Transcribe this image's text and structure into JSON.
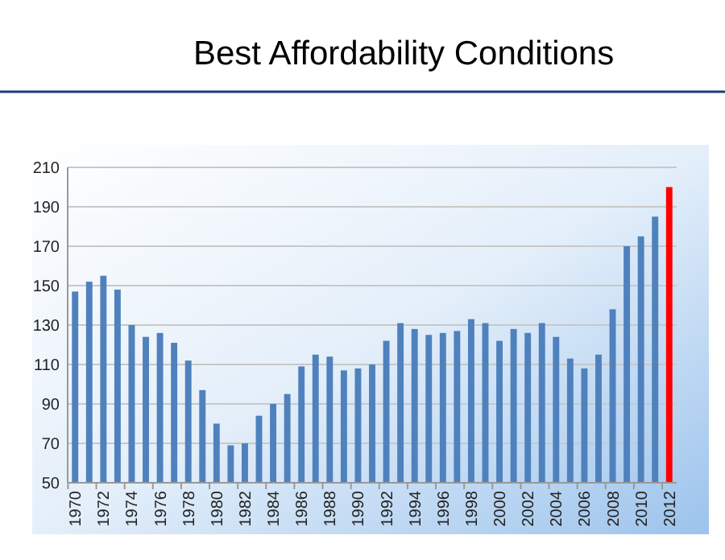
{
  "chart_data": {
    "type": "bar",
    "title": "Best Affordability Conditions",
    "categories": [
      "1970",
      null,
      "1972",
      null,
      "1974",
      null,
      "1976",
      null,
      "1978",
      null,
      "1980",
      null,
      "1982",
      null,
      "1984",
      null,
      "1986",
      null,
      "1988",
      null,
      "1990",
      null,
      "1992",
      null,
      "1994",
      null,
      "1996",
      null,
      "1998",
      null,
      "2000",
      null,
      "2002",
      null,
      "2004",
      null,
      "2006",
      null,
      "2008",
      null,
      "2010",
      null,
      "2012"
    ],
    "values": [
      147,
      152,
      155,
      148,
      130,
      124,
      126,
      121,
      112,
      97,
      80,
      69,
      70,
      84,
      90,
      95,
      109,
      115,
      114,
      107,
      108,
      110,
      122,
      131,
      128,
      125,
      126,
      127,
      133,
      131,
      122,
      128,
      126,
      131,
      124,
      113,
      108,
      115,
      138,
      170,
      175,
      185,
      200
    ],
    "colors": [
      "#4f81bd",
      "#4f81bd",
      "#4f81bd",
      "#4f81bd",
      "#4f81bd",
      "#4f81bd",
      "#4f81bd",
      "#4f81bd",
      "#4f81bd",
      "#4f81bd",
      "#4f81bd",
      "#4f81bd",
      "#4f81bd",
      "#4f81bd",
      "#4f81bd",
      "#4f81bd",
      "#4f81bd",
      "#4f81bd",
      "#4f81bd",
      "#4f81bd",
      "#4f81bd",
      "#4f81bd",
      "#4f81bd",
      "#4f81bd",
      "#4f81bd",
      "#4f81bd",
      "#4f81bd",
      "#4f81bd",
      "#4f81bd",
      "#4f81bd",
      "#4f81bd",
      "#4f81bd",
      "#4f81bd",
      "#4f81bd",
      "#4f81bd",
      "#4f81bd",
      "#4f81bd",
      "#4f81bd",
      "#4f81bd",
      "#4f81bd",
      "#4f81bd",
      "#4f81bd",
      "#ff0000"
    ],
    "ylim": [
      50,
      210
    ],
    "yticks": [
      50,
      70,
      90,
      110,
      130,
      150,
      170,
      190,
      210
    ],
    "grid": "y"
  }
}
